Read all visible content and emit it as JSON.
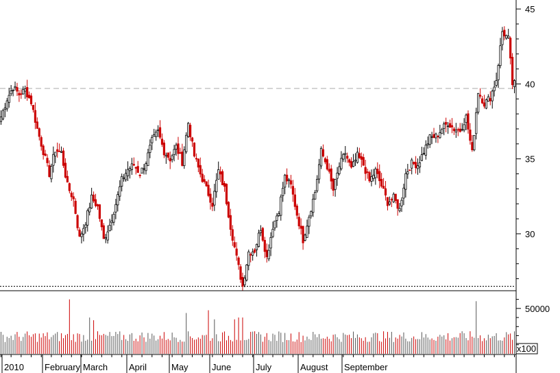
{
  "chart_data": [
    {
      "type": "candlestick",
      "title": "",
      "x_axis_labels": [
        "2010",
        "February",
        "March",
        "April",
        "May",
        "June",
        "July",
        "August",
        "September"
      ],
      "y_ticks": [
        30,
        35,
        40,
        45
      ],
      "ylim": [
        26.2,
        45.6
      ],
      "reference_lines": [
        {
          "style": "dashed",
          "value": 39.7
        },
        {
          "style": "dotted",
          "value": 26.5
        }
      ],
      "colors": {
        "up": "#000000",
        "down": "#cc0000",
        "dashed_line": "#aaaaaa",
        "dotted_line": "#000000"
      },
      "anchors": [
        [
          0,
          37.8
        ],
        [
          3,
          39.0
        ],
        [
          6,
          39.8
        ],
        [
          9,
          39.3
        ],
        [
          12,
          39.6
        ],
        [
          15,
          38.8
        ],
        [
          18,
          37.0
        ],
        [
          21,
          35.5
        ],
        [
          24,
          34.0
        ],
        [
          27,
          35.6
        ],
        [
          30,
          35.4
        ],
        [
          33,
          33.2
        ],
        [
          36,
          32.3
        ],
        [
          39,
          29.7
        ],
        [
          42,
          30.8
        ],
        [
          45,
          32.4
        ],
        [
          48,
          31.8
        ],
        [
          51,
          29.6
        ],
        [
          54,
          30.6
        ],
        [
          57,
          32.0
        ],
        [
          60,
          33.6
        ],
        [
          63,
          34.3
        ],
        [
          66,
          34.6
        ],
        [
          69,
          34.0
        ],
        [
          72,
          34.8
        ],
        [
          75,
          36.2
        ],
        [
          78,
          36.8
        ],
        [
          81,
          35.5
        ],
        [
          84,
          35.0
        ],
        [
          87,
          35.8
        ],
        [
          90,
          34.8
        ],
        [
          93,
          37.4
        ],
        [
          96,
          35.2
        ],
        [
          99,
          34.0
        ],
        [
          102,
          33.0
        ],
        [
          105,
          32.0
        ],
        [
          108,
          34.2
        ],
        [
          111,
          33.0
        ],
        [
          114,
          30.5
        ],
        [
          117,
          28.4
        ],
        [
          120,
          26.5
        ],
        [
          123,
          28.8
        ],
        [
          126,
          28.9
        ],
        [
          129,
          30.4
        ],
        [
          132,
          28.4
        ],
        [
          135,
          30.5
        ],
        [
          138,
          31.6
        ],
        [
          141,
          33.8
        ],
        [
          144,
          33.2
        ],
        [
          147,
          31.3
        ],
        [
          150,
          29.6
        ],
        [
          153,
          31.2
        ],
        [
          156,
          32.8
        ],
        [
          159,
          35.5
        ],
        [
          162,
          34.5
        ],
        [
          165,
          32.9
        ],
        [
          168,
          34.5
        ],
        [
          171,
          35.4
        ],
        [
          174,
          34.3
        ],
        [
          177,
          35.2
        ],
        [
          180,
          34.6
        ],
        [
          183,
          33.5
        ],
        [
          186,
          34.2
        ],
        [
          189,
          33.2
        ],
        [
          192,
          32.1
        ],
        [
          195,
          32.4
        ],
        [
          198,
          31.6
        ],
        [
          201,
          34.0
        ],
        [
          204,
          34.7
        ],
        [
          207,
          34.6
        ],
        [
          210,
          35.5
        ],
        [
          213,
          36.4
        ],
        [
          216,
          36.5
        ],
        [
          219,
          37.0
        ],
        [
          222,
          37.4
        ],
        [
          225,
          37.0
        ],
        [
          228,
          36.9
        ],
        [
          231,
          37.8
        ],
        [
          234,
          35.4
        ],
        [
          237,
          39.5
        ],
        [
          240,
          38.7
        ],
        [
          243,
          39.1
        ],
        [
          246,
          40.3
        ],
        [
          249,
          43.5
        ],
        [
          252,
          43.0
        ],
        [
          254,
          40.0
        ]
      ]
    },
    {
      "type": "bar",
      "title": "",
      "y_ticks": [
        50000
      ],
      "unit_label": "x100",
      "volume_profile": {
        "base": 20000,
        "spikes": [
          {
            "index": 34,
            "value": 60000
          },
          {
            "index": 44,
            "value": 40000
          },
          {
            "index": 46,
            "value": 37000
          },
          {
            "index": 92,
            "value": 45000
          },
          {
            "index": 103,
            "value": 48000
          },
          {
            "index": 106,
            "value": 38000
          },
          {
            "index": 116,
            "value": 38000
          },
          {
            "index": 118,
            "value": 40000
          },
          {
            "index": 120,
            "value": 40000
          },
          {
            "index": 236,
            "value": 58000
          }
        ]
      }
    }
  ]
}
